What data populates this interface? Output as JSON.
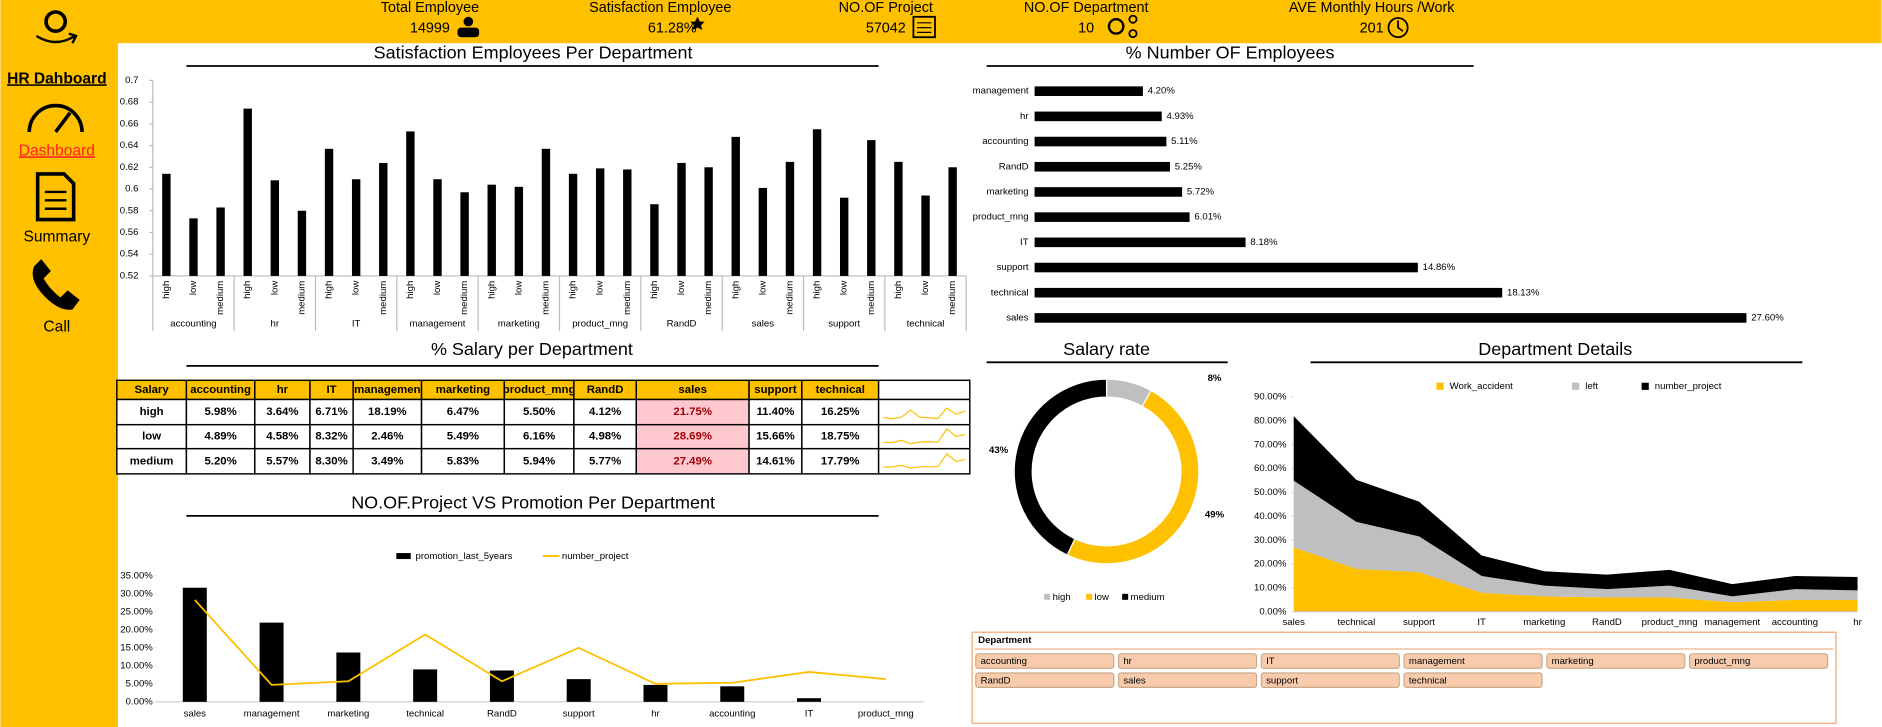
{
  "sidebar": {
    "title": "HR Dahboard",
    "items": [
      "Dashboard",
      "Summary",
      "Call"
    ]
  },
  "kpis": [
    {
      "label": "Total Employee",
      "value": "14999"
    },
    {
      "label": "Satisfaction Employee",
      "value": "61.28%"
    },
    {
      "label": "NO.OF Project",
      "value": "57042"
    },
    {
      "label": "NO.OF Department",
      "value": "10"
    },
    {
      "label": "AVE Monthly Hours /Work",
      "value": "201"
    }
  ],
  "chart_data": [
    {
      "type": "bar",
      "title": "Satisfaction Employees Per Department",
      "color": "#000000",
      "groups": [
        "accounting",
        "hr",
        "IT",
        "management",
        "marketing",
        "product_mng",
        "RandD",
        "sales",
        "support",
        "technical"
      ],
      "categories": [
        "high",
        "low",
        "medium",
        "high",
        "low",
        "medium",
        "high",
        "low",
        "medium",
        "high",
        "low",
        "medium",
        "high",
        "low",
        "medium",
        "high",
        "low",
        "medium",
        "high",
        "low",
        "medium",
        "high",
        "low",
        "medium",
        "high",
        "low",
        "medium",
        "high",
        "low",
        "medium"
      ],
      "values": [
        0.614,
        0.573,
        0.583,
        0.674,
        0.608,
        0.58,
        0.637,
        0.609,
        0.624,
        0.653,
        0.609,
        0.597,
        0.604,
        0.602,
        0.637,
        0.614,
        0.619,
        0.618,
        0.586,
        0.624,
        0.62,
        0.648,
        0.601,
        0.625,
        0.655,
        0.592,
        0.645,
        0.625,
        0.594,
        0.62
      ],
      "ylim": [
        0.52,
        0.7
      ],
      "yticks": [
        0.52,
        0.54,
        0.56,
        0.58,
        0.6,
        0.62,
        0.64,
        0.66,
        0.68,
        0.7
      ]
    },
    {
      "type": "bar",
      "orientation": "horizontal",
      "title": "% Number OF Employees",
      "color": "#000000",
      "categories": [
        "management",
        "hr",
        "accounting",
        "RandD",
        "marketing",
        "product_mng",
        "IT",
        "support",
        "technical",
        "sales"
      ],
      "values": [
        4.2,
        4.93,
        5.11,
        5.25,
        5.72,
        6.01,
        8.18,
        14.86,
        18.13,
        27.6
      ],
      "value_labels": [
        "4.20%",
        "4.93%",
        "5.11%",
        "5.25%",
        "5.72%",
        "6.01%",
        "8.18%",
        "14.86%",
        "18.13%",
        "27.60%"
      ]
    },
    {
      "type": "combo",
      "title": "NO.OF.Project VS Promotion Per Department",
      "categories": [
        "sales",
        "management",
        "marketing",
        "technical",
        "RandD",
        "support",
        "hr",
        "accounting",
        "IT",
        "product_mng"
      ],
      "series": [
        {
          "name": "promotion_last_5years",
          "type": "bar",
          "color": "#000000",
          "values": [
            31.7,
            22.0,
            13.7,
            9.0,
            8.7,
            6.3,
            4.7,
            4.3,
            1.0,
            0
          ]
        },
        {
          "name": "number_project",
          "type": "line",
          "color": "#ffc000",
          "values": [
            28.3,
            4.7,
            5.7,
            18.7,
            5.7,
            15.0,
            5.0,
            5.3,
            8.3,
            6.3
          ]
        }
      ],
      "ylim": [
        0,
        35
      ],
      "yticks": [
        {
          "value": 0,
          "label": "0.00%"
        },
        {
          "value": 5,
          "label": "5.00%"
        },
        {
          "value": 10,
          "label": "10.00%"
        },
        {
          "value": 15,
          "label": "15.00%"
        },
        {
          "value": 20,
          "label": "20.00%"
        },
        {
          "value": 25,
          "label": "25.00%"
        },
        {
          "value": 30,
          "label": "30.00%"
        },
        {
          "value": 35,
          "label": "35.00%"
        }
      ]
    },
    {
      "type": "donut",
      "title": "Salary rate",
      "categories": [
        "high",
        "low",
        "medium"
      ],
      "values": [
        8,
        49,
        43
      ],
      "value_labels": [
        "8%",
        "49%",
        "43%"
      ],
      "colors": [
        "#bfbfbf",
        "#ffc000",
        "#000000"
      ]
    },
    {
      "type": "area",
      "stacked": true,
      "title": "Department Details",
      "categories": [
        "sales",
        "technical",
        "support",
        "IT",
        "marketing",
        "RandD",
        "product_mng",
        "management",
        "accounting",
        "hr"
      ],
      "series": [
        {
          "name": "Work_accident",
          "color": "#ffc000",
          "values": [
            27,
            18,
            16.6,
            8,
            6.5,
            6,
            6,
            4,
            5,
            5
          ]
        },
        {
          "name": "left",
          "color": "#bfbfbf",
          "values": [
            28,
            19.7,
            15,
            7,
            4.5,
            3.5,
            5,
            2.5,
            4.5,
            4
          ]
        },
        {
          "name": "number_project",
          "color": "#000000",
          "values": [
            27,
            17.6,
            14.6,
            8.6,
            6,
            6.1,
            6.6,
            5.1,
            5.5,
            5.6
          ]
        }
      ],
      "ylim": [
        0,
        90
      ],
      "yticks": [
        {
          "value": 0,
          "label": "0.00%"
        },
        {
          "value": 10,
          "label": "10.00%"
        },
        {
          "value": 20,
          "label": "20.00%"
        },
        {
          "value": 30,
          "label": "30.00%"
        },
        {
          "value": 40,
          "label": "40.00%"
        },
        {
          "value": 50,
          "label": "50.00%"
        },
        {
          "value": 60,
          "label": "60.00%"
        },
        {
          "value": 70,
          "label": "70.00%"
        },
        {
          "value": 80,
          "label": "80.00%"
        },
        {
          "value": 90,
          "label": "90.00%"
        }
      ]
    }
  ],
  "table": {
    "title": "% Salary per Department",
    "header": [
      "Salary",
      "accounting",
      "hr",
      "IT",
      "managemen",
      "marketing",
      "product_mng",
      "RandD",
      "sales",
      "support",
      "technical"
    ],
    "rows": [
      {
        "name": "high",
        "values": [
          5.98,
          3.64,
          6.71,
          18.19,
          6.47,
          5.5,
          4.12,
          21.75,
          11.4,
          16.25
        ],
        "value_labels": [
          "5.98%",
          "3.64%",
          "6.71%",
          "18.19%",
          "6.47%",
          "5.50%",
          "4.12%",
          "21.75%",
          "11.40%",
          "16.25%"
        ]
      },
      {
        "name": "low",
        "values": [
          4.89,
          4.58,
          8.32,
          2.46,
          5.49,
          6.16,
          4.98,
          28.69,
          15.66,
          18.75
        ],
        "value_labels": [
          "4.89%",
          "4.58%",
          "8.32%",
          "2.46%",
          "5.49%",
          "6.16%",
          "4.98%",
          "28.69%",
          "15.66%",
          "18.75%"
        ]
      },
      {
        "name": "medium",
        "values": [
          5.2,
          5.57,
          8.3,
          3.49,
          5.83,
          5.94,
          5.77,
          27.49,
          14.61,
          17.79
        ],
        "value_labels": [
          "5.20%",
          "5.57%",
          "8.30%",
          "3.49%",
          "5.83%",
          "5.94%",
          "5.77%",
          "27.49%",
          "14.61%",
          "17.79%"
        ]
      }
    ]
  },
  "slicer": {
    "title": "Department",
    "items": [
      "accounting",
      "hr",
      "IT",
      "management",
      "marketing",
      "product_mng",
      "RandD",
      "sales",
      "support",
      "technical"
    ]
  }
}
